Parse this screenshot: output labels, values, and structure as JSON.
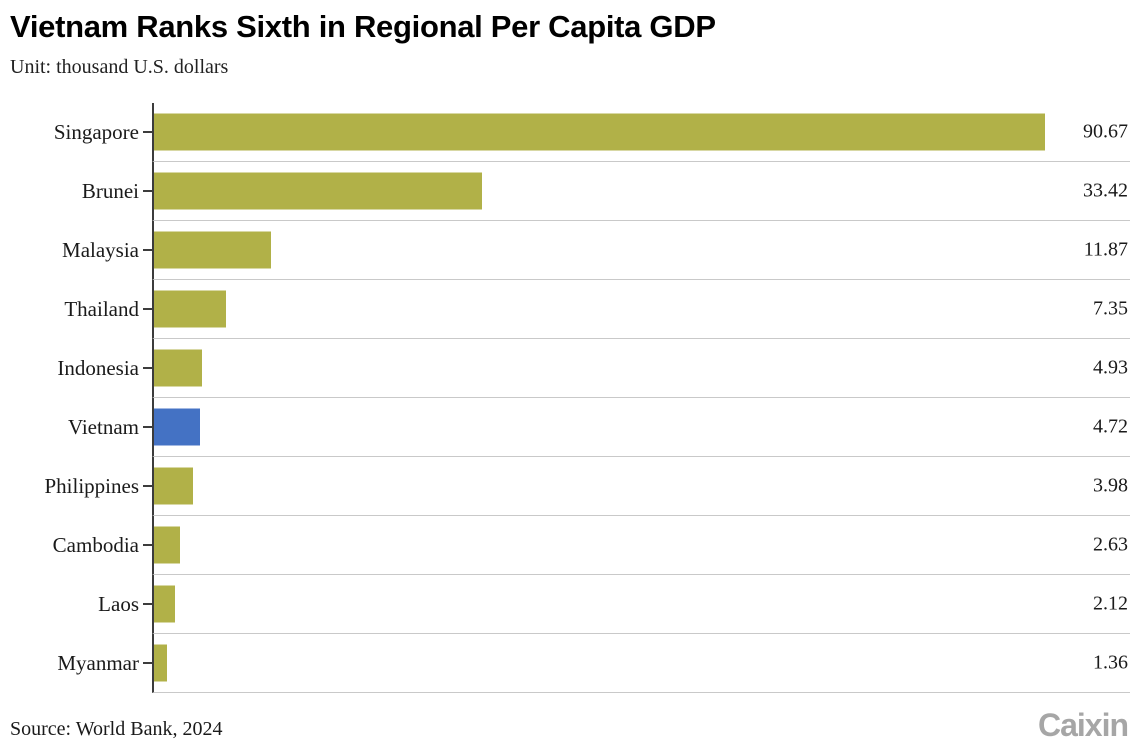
{
  "header": {
    "title": "Vietnam Ranks Sixth in Regional Per Capita GDP",
    "unit_label": "Unit: thousand U.S. dollars"
  },
  "chart_data": {
    "type": "bar",
    "orientation": "horizontal",
    "title": "Vietnam Ranks Sixth in Regional Per Capita GDP",
    "unit": "thousand U.S. dollars",
    "categories": [
      "Singapore",
      "Brunei",
      "Malaysia",
      "Thailand",
      "Indonesia",
      "Vietnam",
      "Philippines",
      "Cambodia",
      "Laos",
      "Myanmar"
    ],
    "values": [
      90.67,
      33.42,
      11.87,
      7.35,
      4.93,
      4.72,
      3.98,
      2.63,
      2.12,
      1.36
    ],
    "value_labels": [
      "90.67",
      "33.42",
      "11.87",
      "7.35",
      "4.93",
      "4.72",
      "3.98",
      "2.63",
      "2.12",
      "1.36"
    ],
    "highlight_category": "Vietnam",
    "xlim": [
      0,
      99.3
    ],
    "grid": "row-separator-lines",
    "legend": "none"
  },
  "colors": {
    "bar": "#b1b148",
    "highlight_bar": "#4472c4",
    "gridline": "#c9c9c9",
    "axis": "#3c3c3c",
    "brand_gray": "#a6a6a6"
  },
  "footer": {
    "source": "Source: World Bank, 2024",
    "brand": "Caixin"
  }
}
